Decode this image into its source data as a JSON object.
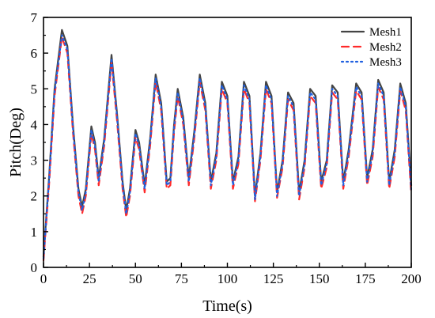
{
  "chart_data": {
    "type": "line",
    "title": "",
    "xlabel": "Time(s)",
    "ylabel": "Pitch(Deg)",
    "xlim": [
      0,
      200
    ],
    "ylim": [
      0,
      7
    ],
    "xticks": [
      0,
      25,
      50,
      75,
      100,
      125,
      150,
      175,
      200
    ],
    "yticks": [
      0,
      1,
      2,
      3,
      4,
      5,
      6,
      7
    ],
    "grid": false,
    "legend_position": "top-right",
    "series": [
      {
        "name": "Mesh1",
        "color": "#444444",
        "style": "solid",
        "points": [
          [
            0,
            0.3
          ],
          [
            3,
            2.5
          ],
          [
            6,
            5.0
          ],
          [
            10,
            6.65
          ],
          [
            13,
            6.2
          ],
          [
            16,
            4.0
          ],
          [
            19,
            2.2
          ],
          [
            21,
            1.7
          ],
          [
            23,
            2.2
          ],
          [
            26,
            3.95
          ],
          [
            28,
            3.5
          ],
          [
            30,
            2.5
          ],
          [
            33,
            3.6
          ],
          [
            37,
            5.95
          ],
          [
            40,
            4.3
          ],
          [
            43,
            2.4
          ],
          [
            45,
            1.6
          ],
          [
            47,
            2.2
          ],
          [
            50,
            3.85
          ],
          [
            52,
            3.5
          ],
          [
            55,
            2.3
          ],
          [
            58,
            3.6
          ],
          [
            61,
            5.4
          ],
          [
            64,
            4.6
          ],
          [
            67,
            2.4
          ],
          [
            69,
            2.5
          ],
          [
            71,
            4.0
          ],
          [
            73,
            5.0
          ],
          [
            76,
            4.2
          ],
          [
            79,
            2.5
          ],
          [
            82,
            3.8
          ],
          [
            85,
            5.4
          ],
          [
            88,
            4.6
          ],
          [
            91,
            2.4
          ],
          [
            94,
            3.2
          ],
          [
            97,
            5.2
          ],
          [
            100,
            4.8
          ],
          [
            103,
            2.4
          ],
          [
            106,
            3.1
          ],
          [
            109,
            5.2
          ],
          [
            112,
            4.8
          ],
          [
            115,
            2.0
          ],
          [
            118,
            3.2
          ],
          [
            121,
            5.2
          ],
          [
            124,
            4.8
          ],
          [
            127,
            2.1
          ],
          [
            130,
            3.0
          ],
          [
            133,
            4.9
          ],
          [
            136,
            4.6
          ],
          [
            139,
            2.1
          ],
          [
            142,
            3.0
          ],
          [
            145,
            5.0
          ],
          [
            148,
            4.8
          ],
          [
            151,
            2.4
          ],
          [
            154,
            3.0
          ],
          [
            157,
            5.1
          ],
          [
            160,
            4.9
          ],
          [
            163,
            2.4
          ],
          [
            166,
            3.3
          ],
          [
            170,
            5.15
          ],
          [
            173,
            4.9
          ],
          [
            176,
            2.5
          ],
          [
            179,
            3.3
          ],
          [
            182,
            5.25
          ],
          [
            185,
            4.9
          ],
          [
            188,
            2.4
          ],
          [
            191,
            3.3
          ],
          [
            194,
            5.15
          ],
          [
            197,
            4.6
          ],
          [
            200,
            2.3
          ]
        ]
      },
      {
        "name": "Mesh2",
        "color": "#ff2a2a",
        "style": "dashed",
        "points": [
          [
            0,
            0.2
          ],
          [
            3,
            2.3
          ],
          [
            6,
            4.8
          ],
          [
            10,
            6.45
          ],
          [
            13,
            6.0
          ],
          [
            16,
            3.8
          ],
          [
            19,
            2.0
          ],
          [
            21,
            1.5
          ],
          [
            23,
            2.0
          ],
          [
            26,
            3.75
          ],
          [
            28,
            3.3
          ],
          [
            30,
            2.3
          ],
          [
            33,
            3.4
          ],
          [
            37,
            5.75
          ],
          [
            40,
            4.1
          ],
          [
            43,
            2.2
          ],
          [
            45,
            1.4
          ],
          [
            47,
            2.0
          ],
          [
            50,
            3.65
          ],
          [
            52,
            3.3
          ],
          [
            55,
            2.1
          ],
          [
            58,
            3.4
          ],
          [
            61,
            5.2
          ],
          [
            64,
            4.4
          ],
          [
            67,
            2.2
          ],
          [
            69,
            2.3
          ],
          [
            71,
            3.8
          ],
          [
            73,
            4.8
          ],
          [
            76,
            4.0
          ],
          [
            79,
            2.3
          ],
          [
            82,
            3.6
          ],
          [
            85,
            5.2
          ],
          [
            88,
            4.4
          ],
          [
            91,
            2.2
          ],
          [
            94,
            3.0
          ],
          [
            97,
            5.0
          ],
          [
            100,
            4.6
          ],
          [
            103,
            2.2
          ],
          [
            106,
            2.9
          ],
          [
            109,
            5.0
          ],
          [
            112,
            4.6
          ],
          [
            115,
            1.85
          ],
          [
            118,
            3.0
          ],
          [
            121,
            5.0
          ],
          [
            124,
            4.6
          ],
          [
            127,
            1.95
          ],
          [
            130,
            2.8
          ],
          [
            133,
            4.7
          ],
          [
            136,
            4.4
          ],
          [
            139,
            1.9
          ],
          [
            142,
            2.8
          ],
          [
            145,
            4.8
          ],
          [
            148,
            4.6
          ],
          [
            151,
            2.2
          ],
          [
            154,
            2.8
          ],
          [
            157,
            4.9
          ],
          [
            160,
            4.7
          ],
          [
            163,
            2.2
          ],
          [
            166,
            3.1
          ],
          [
            170,
            4.95
          ],
          [
            173,
            4.7
          ],
          [
            176,
            2.3
          ],
          [
            179,
            3.1
          ],
          [
            182,
            5.05
          ],
          [
            185,
            4.7
          ],
          [
            188,
            2.2
          ],
          [
            191,
            3.1
          ],
          [
            194,
            4.95
          ],
          [
            197,
            4.4
          ],
          [
            200,
            2.05
          ]
        ]
      },
      {
        "name": "Mesh3",
        "color": "#2060e0",
        "style": "dotted",
        "points": [
          [
            0,
            0.25
          ],
          [
            3,
            2.4
          ],
          [
            6,
            4.9
          ],
          [
            10,
            6.5
          ],
          [
            13,
            6.1
          ],
          [
            16,
            3.9
          ],
          [
            19,
            2.1
          ],
          [
            21,
            1.6
          ],
          [
            23,
            2.1
          ],
          [
            26,
            3.85
          ],
          [
            28,
            3.4
          ],
          [
            30,
            2.4
          ],
          [
            33,
            3.5
          ],
          [
            37,
            5.85
          ],
          [
            40,
            4.2
          ],
          [
            43,
            2.3
          ],
          [
            45,
            1.5
          ],
          [
            47,
            2.1
          ],
          [
            50,
            3.75
          ],
          [
            52,
            3.4
          ],
          [
            55,
            2.2
          ],
          [
            58,
            3.5
          ],
          [
            61,
            5.3
          ],
          [
            64,
            4.5
          ],
          [
            67,
            2.3
          ],
          [
            69,
            2.4
          ],
          [
            71,
            3.9
          ],
          [
            73,
            4.9
          ],
          [
            76,
            4.1
          ],
          [
            79,
            2.4
          ],
          [
            82,
            3.7
          ],
          [
            85,
            5.3
          ],
          [
            88,
            4.5
          ],
          [
            91,
            2.3
          ],
          [
            94,
            3.1
          ],
          [
            97,
            5.1
          ],
          [
            100,
            4.7
          ],
          [
            103,
            2.3
          ],
          [
            106,
            3.0
          ],
          [
            109,
            5.1
          ],
          [
            112,
            4.7
          ],
          [
            115,
            1.9
          ],
          [
            118,
            3.1
          ],
          [
            121,
            5.1
          ],
          [
            124,
            4.7
          ],
          [
            127,
            2.0
          ],
          [
            130,
            2.9
          ],
          [
            133,
            4.8
          ],
          [
            136,
            4.5
          ],
          [
            139,
            2.0
          ],
          [
            142,
            2.9
          ],
          [
            145,
            4.9
          ],
          [
            148,
            4.7
          ],
          [
            151,
            2.3
          ],
          [
            154,
            2.9
          ],
          [
            157,
            5.0
          ],
          [
            160,
            4.8
          ],
          [
            163,
            2.3
          ],
          [
            166,
            3.2
          ],
          [
            170,
            5.05
          ],
          [
            173,
            4.8
          ],
          [
            176,
            2.4
          ],
          [
            179,
            3.2
          ],
          [
            182,
            5.15
          ],
          [
            185,
            4.8
          ],
          [
            188,
            2.3
          ],
          [
            191,
            3.2
          ],
          [
            194,
            5.05
          ],
          [
            197,
            4.5
          ],
          [
            200,
            2.15
          ]
        ]
      }
    ]
  }
}
